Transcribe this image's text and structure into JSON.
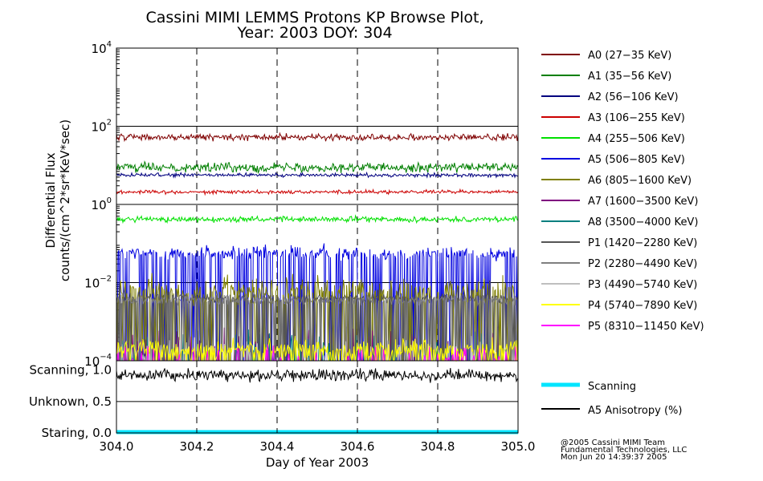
{
  "chart_data": {
    "type": "line",
    "title_line1": "Cassini MIMI LEMMS Protons KP Browse Plot,",
    "title_line2": "Year: 2003 DOY: 304",
    "xlabel": "Day of Year 2003",
    "ylabel_line1": "Differential Flux",
    "ylabel_line2": "counts/(cm^2*sr*KeV*sec)",
    "xlim": [
      304.0,
      305.0
    ],
    "x_ticks": [
      {
        "value": 304.0,
        "label": "304.0"
      },
      {
        "value": 304.2,
        "label": "304.2"
      },
      {
        "value": 304.4,
        "label": "304.4"
      },
      {
        "value": 304.6,
        "label": "304.6"
      },
      {
        "value": 304.8,
        "label": "304.8"
      },
      {
        "value": 305.0,
        "label": "305.0"
      }
    ],
    "ylim_log10": [
      -4,
      4
    ],
    "y_ticks": [
      {
        "exp": 4,
        "base": "10",
        "sup": "4"
      },
      {
        "exp": 2,
        "base": "10",
        "sup": "2"
      },
      {
        "exp": 0,
        "base": "10",
        "sup": "0"
      },
      {
        "exp": -2,
        "base": "10",
        "sup": "−2"
      },
      {
        "exp": -4,
        "base": "10",
        "sup": "−4"
      }
    ],
    "series": [
      {
        "name": "A0 (27-35 KeV)",
        "legend": "A0 (27−35 KeV)",
        "color": "#7f0000",
        "median_log10": 1.72,
        "noise": 0.07,
        "style": "continuous"
      },
      {
        "name": "A1 (35-56 KeV)",
        "legend": "A1 (35−56 KeV)",
        "color": "#007f00",
        "median_log10": 0.95,
        "noise": 0.1,
        "style": "continuous"
      },
      {
        "name": "A2 (56-106 KeV)",
        "legend": "A2 (56−106 KeV)",
        "color": "#00007f",
        "median_log10": 0.75,
        "noise": 0.04,
        "style": "continuous"
      },
      {
        "name": "A3 (106-255 KeV)",
        "legend": "A3 (106−255 KeV)",
        "color": "#cc0000",
        "median_log10": 0.32,
        "noise": 0.04,
        "style": "continuous"
      },
      {
        "name": "A4 (255-506 KeV)",
        "legend": "A4 (255−506 KeV)",
        "color": "#00e000",
        "median_log10": -0.38,
        "noise": 0.06,
        "style": "continuous"
      },
      {
        "name": "A5 (506-805 KeV)",
        "legend": "A5 (506−805 KeV)",
        "color": "#0000e0",
        "median_log10": -1.25,
        "noise": 0.15,
        "style": "spiky",
        "spike_prob": 0.35
      },
      {
        "name": "A6 (805-1600 KeV)",
        "legend": "A6 (805−1600 KeV)",
        "color": "#7f7f00",
        "median_log10": -2.2,
        "noise": 0.3,
        "style": "spiky",
        "spike_prob": 0.35
      },
      {
        "name": "A7 (1600-3500 KeV)",
        "legend": "A7 (1600−3500 KeV)",
        "color": "#7f007f",
        "median_log10": -3.4,
        "noise": 0.3,
        "style": "sparse"
      },
      {
        "name": "A8 (3500-4000 KeV)",
        "legend": "A8 (3500−4000 KeV)",
        "color": "#007f7f",
        "median_log10": -3.5,
        "noise": 0.3,
        "style": "sparse"
      },
      {
        "name": "P1 (1420-2280 KeV)",
        "legend": "P1 (1420−2280 KeV)",
        "color": "#555555",
        "median_log10": -2.4,
        "noise": 0.1,
        "style": "spiky",
        "spike_prob": 0.25
      },
      {
        "name": "P2 (2280-4490 KeV)",
        "legend": "P2 (2280−4490 KeV)",
        "color": "#7f7f7f",
        "median_log10": -2.45,
        "noise": 0.1,
        "style": "spiky",
        "spike_prob": 0.2
      },
      {
        "name": "P3 (4490-5740 KeV)",
        "legend": "P3 (4490−5740 KeV)",
        "color": "#bfbfbf",
        "median_log10": -3.6,
        "noise": 0.2,
        "style": "sparse"
      },
      {
        "name": "P4 (5740-7890 KeV)",
        "legend": "P4 (5740−7890 KeV)",
        "color": "#ffff00",
        "median_log10": -3.7,
        "noise": 0.2,
        "style": "spiky",
        "spike_prob": 0.2
      },
      {
        "name": "P5 (8310-11450 KeV)",
        "legend": "P5 (8310−11450 KeV)",
        "color": "#ff00ff",
        "median_log10": -3.8,
        "noise": 0.2,
        "style": "sparse"
      }
    ],
    "lower_panel": {
      "y_labels": [
        {
          "value": 1.0,
          "label": "Scanning, 1.0"
        },
        {
          "value": 0.5,
          "label": "Unknown, 0.5"
        },
        {
          "value": 0.0,
          "label": "Staring, 0.0"
        }
      ],
      "ylim": [
        0.0,
        1.15
      ],
      "scanning": {
        "name": "Scanning",
        "color": "#00e5ff",
        "value": 0.0
      },
      "anisotropy": {
        "name": "A5 Anisotropy (%)",
        "color": "#000000",
        "mean": 0.92,
        "noise": 0.08
      }
    },
    "legend_position": "right",
    "footer": [
      "@2005 Cassini MIMI Team",
      "Fundamental Technologies, LLC",
      "Mon Jun 20 14:39:37 2005"
    ]
  }
}
